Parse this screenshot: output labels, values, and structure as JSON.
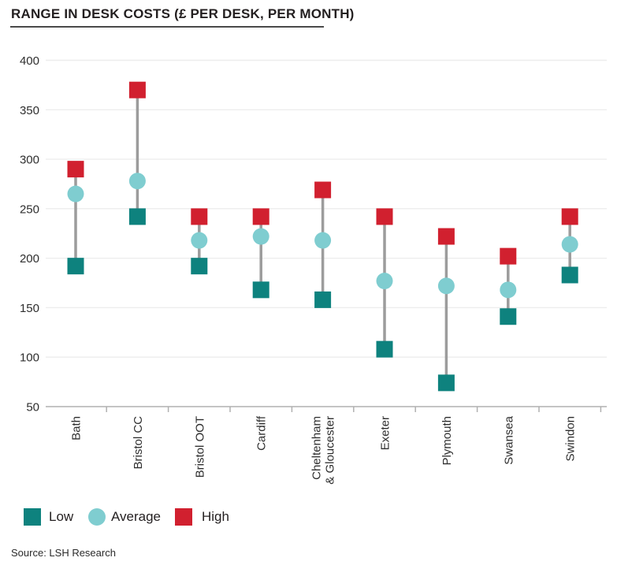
{
  "header": {
    "title": "RANGE IN DESK COSTS (£ PER DESK, PER MONTH)"
  },
  "chart_data": {
    "type": "scatter",
    "subtype": "dumbbell-range",
    "title": "RANGE IN DESK COSTS (£ PER DESK, PER MONTH)",
    "categories": [
      "Bath",
      "Bristol CC",
      "Bristol OOT",
      "Cardiff",
      "Cheltenham\n& Gloucester",
      "Exeter",
      "Plymouth",
      "Swansea",
      "Swindon"
    ],
    "series": [
      {
        "name": "Low",
        "marker": "square",
        "color": "#0e827e",
        "values": [
          192,
          242,
          192,
          168,
          158,
          108,
          74,
          141,
          183
        ]
      },
      {
        "name": "Average",
        "marker": "circle",
        "color": "#7fcdd0",
        "values": [
          265,
          278,
          218,
          222,
          218,
          177,
          172,
          168,
          214
        ]
      },
      {
        "name": "High",
        "marker": "square",
        "color": "#d1202f",
        "values": [
          290,
          370,
          242,
          242,
          269,
          242,
          222,
          202,
          242
        ]
      }
    ],
    "xlabel": "",
    "ylabel": "",
    "ylim": [
      50,
      400
    ],
    "y_ticks": [
      400,
      350,
      300,
      250,
      200,
      150,
      100,
      50
    ],
    "grid": "horizontal",
    "legend_position": "bottom-left",
    "range_line_color": "#9c9c9c",
    "gridline_color": "#ededed",
    "axis_color": "#b0b0b0",
    "tick_label_color": "#2e2e2e"
  },
  "source": "Source: LSH Research"
}
